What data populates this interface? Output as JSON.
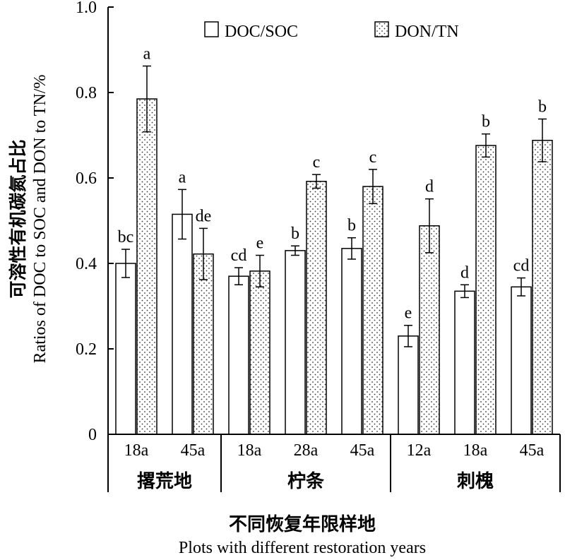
{
  "chart_data": {
    "type": "bar",
    "ylabel_cn": "可溶性有机碳氮占比",
    "ylabel_en": "Ratios of  DOC to SOC and DON to TN/%",
    "xlabel_cn": "不同恢复年限样地",
    "xlabel_en": "Plots with different restoration years",
    "ylim": [
      0,
      1.0
    ],
    "yticks": [
      {
        "value": 0,
        "label": "0"
      },
      {
        "value": 0.2,
        "label": "0.2"
      },
      {
        "value": 0.4,
        "label": "0.4"
      },
      {
        "value": 0.6,
        "label": "0.6"
      },
      {
        "value": 0.8,
        "label": "0.8"
      },
      {
        "value": 1.0,
        "label": "1.0"
      }
    ],
    "legend_position": "top",
    "groups": [
      {
        "label": "撂荒地",
        "categories": [
          "18a",
          "45a"
        ]
      },
      {
        "label": "柠条",
        "categories": [
          "18a",
          "28a",
          "45a"
        ]
      },
      {
        "label": "刺槐",
        "categories": [
          "12a",
          "18a",
          "45a"
        ]
      }
    ],
    "categories": [
      "18a",
      "45a",
      "18a",
      "28a",
      "45a",
      "12a",
      "18a",
      "45a"
    ],
    "series": [
      {
        "name": "DOC/SOC",
        "pattern": "white",
        "values": [
          0.4,
          0.515,
          0.37,
          0.43,
          0.435,
          0.23,
          0.335,
          0.345
        ],
        "errors": [
          0.033,
          0.058,
          0.02,
          0.011,
          0.025,
          0.025,
          0.015,
          0.021
        ],
        "labels": [
          "bc",
          "a",
          "cd",
          "b",
          "b",
          "e",
          "d",
          "cd"
        ]
      },
      {
        "name": "DON/TN",
        "pattern": "dotted",
        "values": [
          0.785,
          0.422,
          0.382,
          0.592,
          0.58,
          0.488,
          0.676,
          0.688
        ],
        "errors": [
          0.077,
          0.06,
          0.037,
          0.016,
          0.04,
          0.063,
          0.027,
          0.05
        ],
        "labels": [
          "a",
          "de",
          "e",
          "c",
          "c",
          "d",
          "b",
          "b"
        ]
      }
    ]
  }
}
